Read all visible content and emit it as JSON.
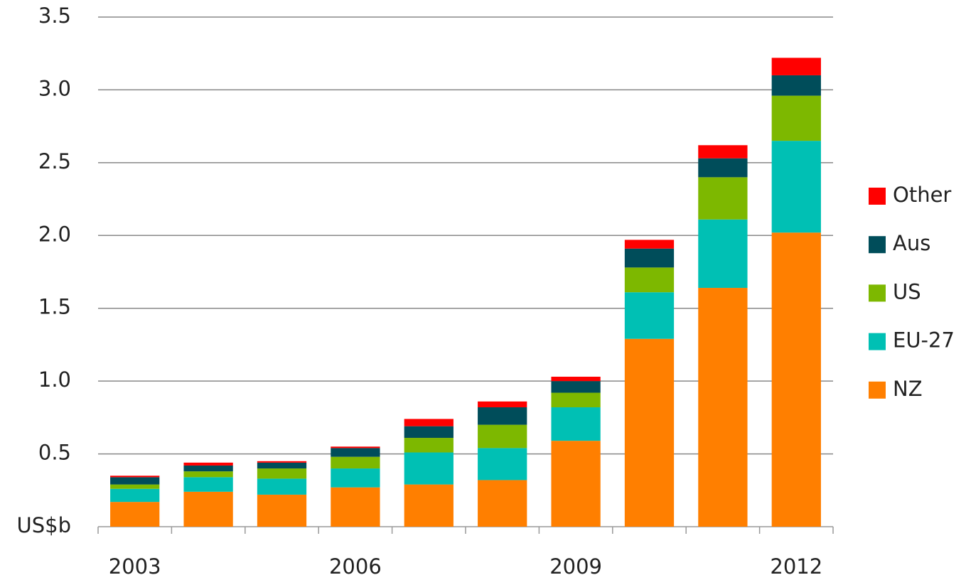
{
  "chart_data": {
    "type": "stacked_bar",
    "categories": [
      "2003",
      null,
      null,
      "2006",
      null,
      null,
      "2009",
      null,
      null,
      "2012"
    ],
    "series": [
      {
        "name": "NZ",
        "color": "#ff7f00",
        "values": [
          0.17,
          0.24,
          0.22,
          0.27,
          0.29,
          0.32,
          0.59,
          1.29,
          1.64,
          2.02
        ]
      },
      {
        "name": "EU-27",
        "color": "#00c0b4",
        "values": [
          0.09,
          0.1,
          0.11,
          0.13,
          0.22,
          0.22,
          0.23,
          0.32,
          0.47,
          0.63
        ]
      },
      {
        "name": "US",
        "color": "#7db800",
        "values": [
          0.03,
          0.04,
          0.07,
          0.08,
          0.1,
          0.16,
          0.1,
          0.17,
          0.29,
          0.31
        ]
      },
      {
        "name": "Aus",
        "color": "#004d5a",
        "values": [
          0.05,
          0.04,
          0.04,
          0.06,
          0.08,
          0.12,
          0.08,
          0.13,
          0.13,
          0.14
        ]
      },
      {
        "name": "Other",
        "color": "#ff0000",
        "values": [
          0.01,
          0.02,
          0.01,
          0.01,
          0.05,
          0.04,
          0.03,
          0.06,
          0.09,
          0.12
        ]
      }
    ],
    "ylim": [
      0,
      3.5
    ],
    "yticks": [
      {
        "value": 0,
        "label": "US$b"
      },
      0.5,
      {
        "value": 1,
        "label": "1.0"
      },
      1.5,
      {
        "value": 2,
        "label": "2.0"
      },
      2.5,
      {
        "value": 3,
        "label": "3.0"
      },
      3.5
    ],
    "grid": true,
    "legend": "right"
  }
}
